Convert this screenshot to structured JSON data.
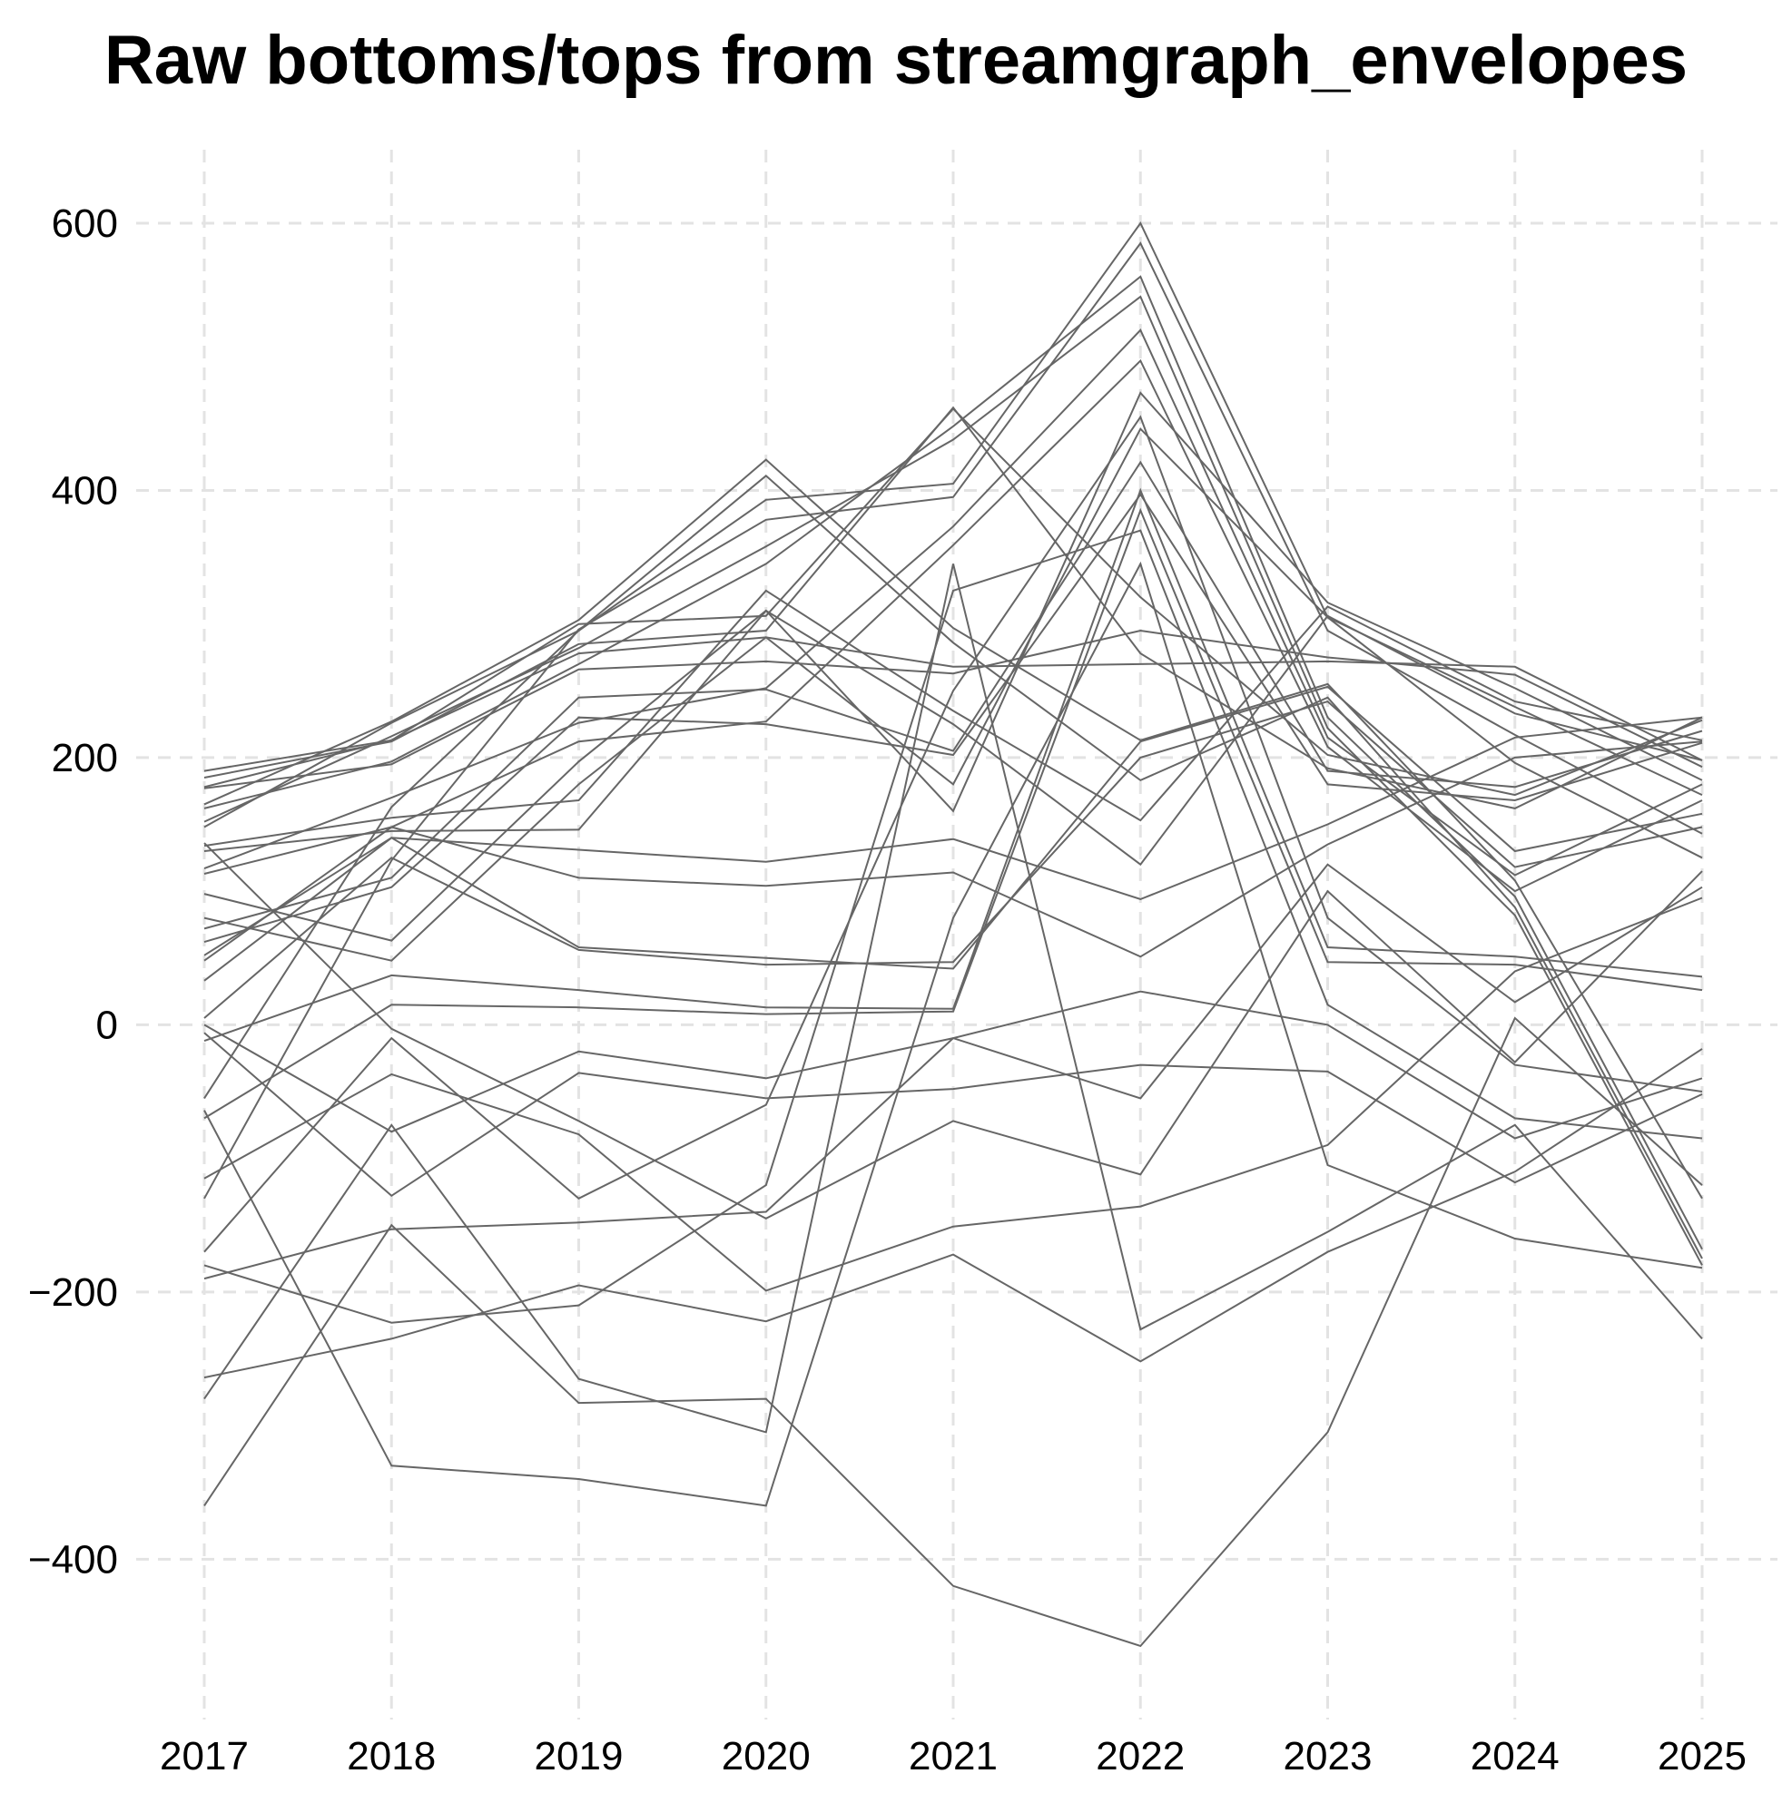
{
  "chart_data": {
    "type": "line",
    "title": "Raw bottoms/tops from streamgraph_envelopes",
    "xlabel": "",
    "ylabel": "",
    "x": [
      2017,
      2018,
      2019,
      2020,
      2021,
      2022,
      2023,
      2024,
      2025
    ],
    "xlim": [
      2017,
      2025
    ],
    "ylim": [
      -520,
      655
    ],
    "x_ticks": [
      2017,
      2018,
      2019,
      2020,
      2021,
      2022,
      2023,
      2024,
      2025
    ],
    "y_ticks": [
      -400,
      -200,
      0,
      200,
      400,
      600
    ],
    "grid": true,
    "legend": "none",
    "line_color": "#666666",
    "series": [
      {
        "values": [
          165,
          227,
          303,
          423,
          297,
          213,
          255,
          108,
          -130
        ]
      },
      {
        "values": [
          148,
          226,
          295,
          411,
          286,
          183,
          245,
          88,
          -175
        ]
      },
      {
        "values": [
          178,
          213,
          278,
          290,
          268,
          270,
          272,
          268,
          198
        ]
      },
      {
        "values": [
          177,
          195,
          266,
          272,
          263,
          295,
          275,
          262,
          193
        ]
      },
      {
        "values": [
          162,
          197,
          270,
          345,
          448,
          560,
          230,
          96,
          -168
        ]
      },
      {
        "values": [
          152,
          216,
          282,
          358,
          438,
          545,
          222,
          82,
          -180
        ]
      },
      {
        "values": [
          -55,
          163,
          295,
          393,
          405,
          600,
          305,
          196,
          125
        ]
      },
      {
        "values": [
          -130,
          123,
          296,
          378,
          395,
          585,
          295,
          217,
          143
        ]
      },
      {
        "values": [
          190,
          213,
          300,
          306,
          461,
          320,
          202,
          172,
          228
        ]
      },
      {
        "values": [
          185,
          212,
          285,
          295,
          462,
          278,
          192,
          162,
          230
        ]
      },
      {
        "values": [
          117,
          170,
          226,
          252,
          373,
          520,
          215,
          112,
          180
        ]
      },
      {
        "values": [
          113,
          148,
          212,
          227,
          359,
          497,
          208,
          100,
          168
        ]
      },
      {
        "values": [
          134,
          155,
          168,
          325,
          235,
          153,
          313,
          242,
          213
        ]
      },
      {
        "values": [
          130,
          145,
          146,
          310,
          225,
          120,
          306,
          233,
          198
        ]
      },
      {
        "values": [
          98,
          63,
          197,
          310,
          160,
          473,
          316,
          252,
          183
        ]
      },
      {
        "values": [
          80,
          48,
          180,
          290,
          180,
          446,
          305,
          238,
          172
        ]
      },
      {
        "values": [
          72,
          110,
          245,
          251,
          205,
          421,
          190,
          178,
          220
        ]
      },
      {
        "values": [
          62,
          103,
          230,
          225,
          202,
          397,
          180,
          168,
          211
        ]
      },
      {
        "values": [
          52,
          140,
          131,
          122,
          139,
          94,
          150,
          215,
          230
        ]
      },
      {
        "values": [
          48,
          148,
          110,
          104,
          114,
          51,
          135,
          200,
          212
        ]
      },
      {
        "values": [
          33,
          140,
          58,
          50,
          42,
          212,
          253,
          130,
          158
        ]
      },
      {
        "values": [
          5,
          125,
          56,
          45,
          47,
          200,
          242,
          118,
          148
        ]
      },
      {
        "values": [
          -12,
          37,
          26,
          13,
          12,
          400,
          58,
          51,
          36
        ]
      },
      {
        "values": [
          -70,
          15,
          13,
          8,
          10,
          385,
          47,
          45,
          26
        ]
      },
      {
        "values": [
          0,
          -80,
          -20,
          -40,
          -10,
          25,
          0,
          -85,
          -40
        ]
      },
      {
        "values": [
          -6,
          -128,
          -36,
          -55,
          -48,
          -30,
          -35,
          -118,
          -52
        ]
      },
      {
        "values": [
          136,
          -3,
          -72,
          -145,
          -72,
          -112,
          100,
          -28,
          115
        ]
      },
      {
        "values": [
          -190,
          -153,
          -148,
          -140,
          -10,
          -55,
          120,
          17,
          103
        ]
      },
      {
        "values": [
          -115,
          -37,
          -82,
          -199,
          -151,
          -136,
          -90,
          40,
          95
        ]
      },
      {
        "values": [
          -264,
          -235,
          -195,
          -222,
          -172,
          -252,
          -170,
          -110,
          -18
        ]
      },
      {
        "values": [
          -360,
          -150,
          -283,
          -280,
          -420,
          -465,
          -305,
          5,
          -120
        ]
      },
      {
        "values": [
          -280,
          -75,
          -265,
          -305,
          345,
          -228,
          -155,
          -75,
          -235
        ]
      },
      {
        "values": [
          -180,
          -223,
          -210,
          -120,
          325,
          370,
          15,
          -70,
          -85
        ]
      },
      {
        "values": [
          -64,
          -330,
          -340,
          -360,
          80,
          345,
          -105,
          -160,
          -182
        ]
      },
      {
        "values": [
          -170,
          -10,
          -130,
          -60,
          250,
          455,
          80,
          -30,
          -50
        ]
      }
    ]
  }
}
